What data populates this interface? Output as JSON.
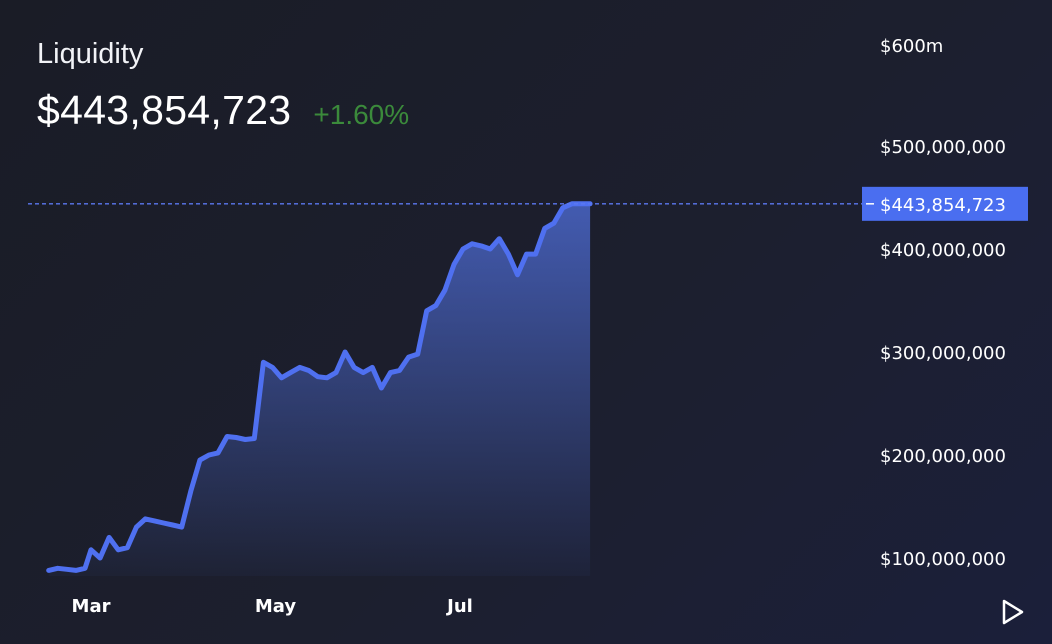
{
  "header": {
    "title": "Liquidity",
    "value": "$443,854,723",
    "change": "+1.60%",
    "change_color": "#3b8a3b"
  },
  "controls": {
    "play_icon": "play-icon"
  },
  "colors": {
    "line": "#4f70f0",
    "area_top": "#4a66c8",
    "crosshair": "#5b78f0",
    "price_tag_bg": "#4a6ef0",
    "axis_text": "#ffffff"
  },
  "chart_data": {
    "type": "area",
    "title": "Liquidity",
    "xlabel": "",
    "ylabel": "",
    "x_tick_labels": [
      "Mar",
      "May",
      "Jul"
    ],
    "y_tick_labels": [
      "$100,000,000",
      "$200,000,000",
      "$300,000,000",
      "$400,000,000",
      "$500,000,000",
      "$600m"
    ],
    "ylim": [
      80000000,
      600000000
    ],
    "grid": false,
    "legend": "none",
    "crosshair": {
      "value": 443854723,
      "label": "$443,854,723"
    },
    "series": [
      {
        "x": [
          "2023-02-15",
          "2023-02-18",
          "2023-02-21",
          "2023-02-24",
          "2023-02-27",
          "2023-03-01",
          "2023-03-04",
          "2023-03-07",
          "2023-03-10",
          "2023-03-13",
          "2023-03-16",
          "2023-03-19",
          "2023-03-22",
          "2023-03-25",
          "2023-03-28",
          "2023-03-31",
          "2023-04-03",
          "2023-04-06",
          "2023-04-09",
          "2023-04-12",
          "2023-04-15",
          "2023-04-18",
          "2023-04-21",
          "2023-04-24",
          "2023-04-27",
          "2023-04-30",
          "2023-05-03",
          "2023-05-06",
          "2023-05-09",
          "2023-05-12",
          "2023-05-15",
          "2023-05-18",
          "2023-05-21",
          "2023-05-24",
          "2023-05-27",
          "2023-05-30",
          "2023-06-02",
          "2023-06-05",
          "2023-06-08",
          "2023-06-11",
          "2023-06-14",
          "2023-06-17",
          "2023-06-20",
          "2023-06-23",
          "2023-06-26",
          "2023-06-29",
          "2023-07-02",
          "2023-07-05",
          "2023-07-08",
          "2023-07-11",
          "2023-07-14",
          "2023-07-17",
          "2023-07-20",
          "2023-07-23",
          "2023-07-26",
          "2023-07-29",
          "2023-08-01",
          "2023-08-04",
          "2023-08-07",
          "2023-08-10",
          "2023-08-13"
        ],
        "values": [
          88000000,
          90000000,
          89000000,
          88000000,
          90000000,
          108000000,
          100000000,
          120000000,
          108000000,
          110000000,
          130000000,
          138000000,
          136000000,
          134000000,
          132000000,
          130000000,
          165000000,
          195000000,
          200000000,
          202000000,
          218000000,
          217000000,
          215000000,
          216000000,
          290000000,
          285000000,
          275000000,
          280000000,
          285000000,
          282000000,
          276000000,
          275000000,
          280000000,
          300000000,
          285000000,
          280000000,
          285000000,
          265000000,
          280000000,
          282000000,
          295000000,
          298000000,
          340000000,
          345000000,
          360000000,
          385000000,
          400000000,
          405000000,
          403000000,
          400000000,
          410000000,
          395000000,
          375000000,
          395000000,
          395000000,
          420000000,
          425000000,
          440000000,
          443854723,
          443854723,
          443854723
        ]
      }
    ]
  }
}
